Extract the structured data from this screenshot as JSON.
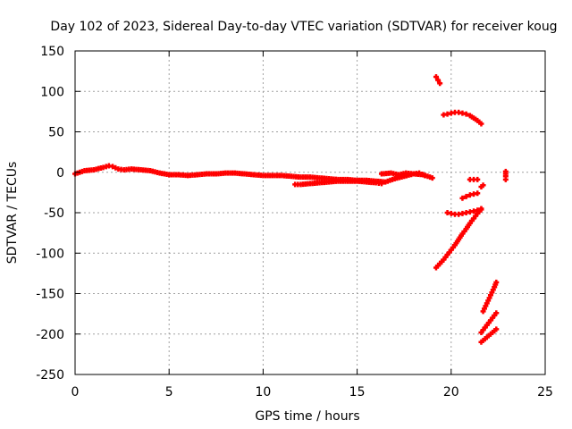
{
  "chart_data": {
    "type": "scatter",
    "title": "Day 102 of 2023, Sidereal Day-to-day VTEC variation (SDTVAR) for receiver koug",
    "xlabel": "GPS time / hours",
    "ylabel": "SDTVAR / TECUs",
    "xlim": [
      0,
      25
    ],
    "ylim": [
      -250,
      150
    ],
    "xticks": [
      0,
      5,
      10,
      15,
      20,
      25
    ],
    "yticks": [
      150,
      100,
      50,
      0,
      -50,
      -100,
      -150,
      -200,
      -250
    ],
    "grid": true,
    "marker": "plus",
    "color": "#ff0000",
    "series": [
      {
        "x": [
          0,
          0.5,
          1,
          1.5,
          1.8,
          2,
          2.3,
          2.6,
          3,
          3.5,
          4,
          4.5,
          5,
          5.5,
          6,
          6.5,
          7,
          7.5,
          8,
          8.5,
          9,
          9.5,
          10,
          10.5,
          11,
          11.5,
          12,
          12.5,
          13,
          13.5,
          14,
          14.5,
          15,
          15.5,
          16,
          16.5,
          17,
          17.5,
          18,
          18.5,
          19
        ],
        "y": [
          -2,
          2,
          3,
          6,
          8,
          7,
          4,
          3,
          4,
          3,
          2,
          -1,
          -3,
          -3,
          -4,
          -3,
          -2,
          -2,
          -1,
          -1,
          -2,
          -3,
          -4,
          -4,
          -4,
          -5,
          -6,
          -6,
          -7,
          -8,
          -9,
          -9,
          -10,
          -10,
          -11,
          -12,
          -8,
          -5,
          -2,
          -3,
          -7
        ]
      },
      {
        "x": [
          11.7,
          12,
          12.5,
          13,
          13.5,
          14,
          14.5,
          15,
          15.5,
          16,
          16.3
        ],
        "y": [
          -15,
          -15,
          -14,
          -13,
          -12,
          -11,
          -11,
          -11,
          -12,
          -13,
          -14
        ]
      },
      {
        "x": [
          16.3,
          16.8,
          17.2,
          17.6,
          18,
          18.3,
          18.6
        ],
        "y": [
          -2,
          -1,
          -3,
          -1,
          -2,
          -1,
          -4
        ]
      },
      {
        "x": [
          19.2,
          19.3,
          19.4
        ],
        "y": [
          118,
          114,
          110
        ]
      },
      {
        "x": [
          19.6,
          19.8,
          20,
          20.2,
          20.4,
          20.6,
          20.8,
          21,
          21.2,
          21.4,
          21.6
        ],
        "y": [
          71,
          72,
          73,
          74,
          74,
          73,
          72,
          70,
          67,
          64,
          60
        ]
      },
      {
        "x": [
          19.2,
          19.4,
          19.6,
          19.8,
          20,
          20.2,
          20.4,
          20.6,
          20.8,
          21,
          21.2,
          21.4,
          21.6
        ],
        "y": [
          -118,
          -113,
          -108,
          -102,
          -96,
          -90,
          -83,
          -76,
          -70,
          -63,
          -57,
          -51,
          -46
        ]
      },
      {
        "x": [
          19.8,
          20,
          20.2,
          20.4,
          20.6,
          20.8,
          21,
          21.2,
          21.4,
          21.6
        ],
        "y": [
          -50,
          -51,
          -52,
          -52,
          -51,
          -50,
          -49,
          -48,
          -47,
          -45
        ]
      },
      {
        "x": [
          20.6,
          20.8,
          21,
          21.2,
          21.4
        ],
        "y": [
          -32,
          -30,
          -28,
          -27,
          -26
        ]
      },
      {
        "x": [
          21.0,
          21.2,
          21.4
        ],
        "y": [
          -9,
          -9,
          -9
        ]
      },
      {
        "x": [
          21.6,
          21.7
        ],
        "y": [
          -18,
          -16
        ]
      },
      {
        "x": [
          21.7,
          21.9,
          22.1,
          22.3,
          22.4
        ],
        "y": [
          -172,
          -162,
          -152,
          -142,
          -136
        ]
      },
      {
        "x": [
          21.6,
          21.8,
          22.0,
          22.2,
          22.4
        ],
        "y": [
          -198,
          -192,
          -186,
          -180,
          -174
        ]
      },
      {
        "x": [
          21.6,
          21.8,
          22.0,
          22.2,
          22.4
        ],
        "y": [
          -210,
          -206,
          -202,
          -198,
          -194
        ]
      },
      {
        "x": [
          22.9,
          22.9,
          22.9,
          22.9
        ],
        "y": [
          -9,
          -5,
          -2,
          1
        ]
      }
    ]
  }
}
